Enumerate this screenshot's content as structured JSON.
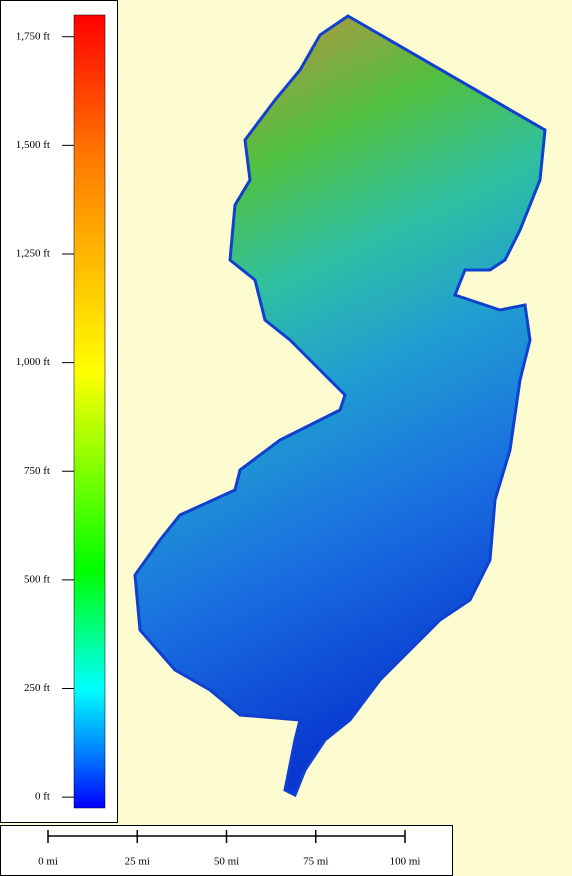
{
  "legend": {
    "range": [
      -25,
      1800
    ],
    "ticks": [
      {
        "value": 0,
        "label": "0 ft"
      },
      {
        "value": 250,
        "label": "250 ft"
      },
      {
        "value": 500,
        "label": "500 ft"
      },
      {
        "value": 750,
        "label": "750 ft"
      },
      {
        "value": 1000,
        "label": "1,000 ft"
      },
      {
        "value": 1250,
        "label": "1,250 ft"
      },
      {
        "value": 1500,
        "label": "1,500 ft"
      },
      {
        "value": 1750,
        "label": "1,750 ft"
      }
    ]
  },
  "scale_bar": {
    "ticks": [
      {
        "value": 0,
        "label": "0 mi"
      },
      {
        "value": 25,
        "label": "25 mi"
      },
      {
        "value": 50,
        "label": "50 mi"
      },
      {
        "value": 75,
        "label": "75 mi"
      },
      {
        "value": 100,
        "label": "100 mi"
      }
    ]
  }
}
